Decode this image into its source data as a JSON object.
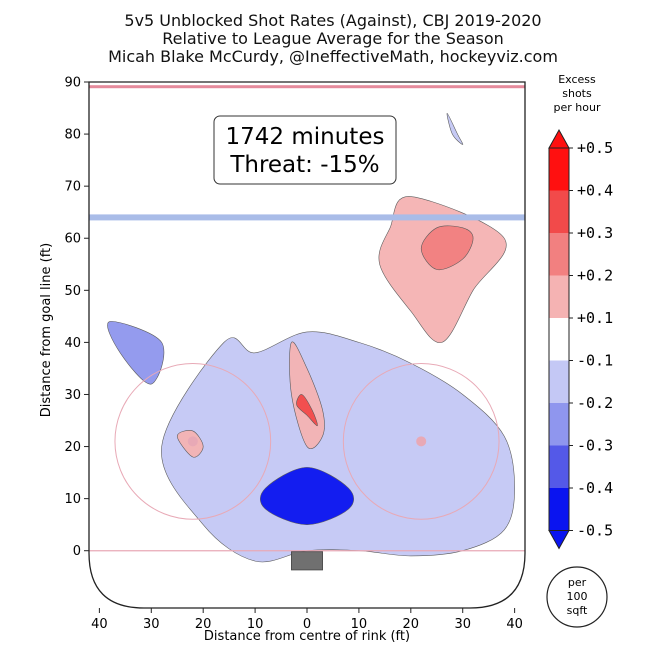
{
  "title_lines": [
    "5v5 Unblocked Shot Rates (Against), CBJ 2019-2020",
    "Relative to League Average for the Season",
    "Micah Blake McCurdy, @IneffectiveMath, hockeyviz.com"
  ],
  "annotation": {
    "line1": "1742 minutes",
    "line2": "Threat: -15%"
  },
  "colors": {
    "pos5": "#ff1010",
    "pos4": "#f24a4a",
    "pos3": "#f28080",
    "pos2": "#f5b3b3",
    "neg2": "#c4c8f5",
    "neg3": "#8f96ee",
    "neg4": "#5459e8",
    "neg5": "#0a14f0",
    "rink_line": "#e8a9b6",
    "blue_line": "#a9bce8",
    "goal": "#707070"
  },
  "chart_data": {
    "type": "heatmap",
    "title": "5v5 Unblocked Shot Rates (Against), CBJ 2019-2020",
    "subtitle": "Relative to League Average for the Season",
    "xlabel": "Distance from centre of rink (ft)",
    "ylabel": "Distance from goal line (ft)",
    "xlim": [
      42,
      -42
    ],
    "ylim": [
      -11,
      90
    ],
    "x_ticks": [
      "40",
      "30",
      "20",
      "10",
      "0",
      "10",
      "20",
      "30",
      "40"
    ],
    "y_ticks": [
      "0",
      "10",
      "20",
      "30",
      "40",
      "50",
      "60",
      "70",
      "80",
      "90"
    ],
    "colorbar": {
      "title": "Excess shots per hour",
      "labels": [
        "+0.5",
        "+0.4",
        "+0.3",
        "+0.2",
        "+0.1",
        "-0.1",
        "-0.2",
        "-0.3",
        "-0.4",
        "-0.5"
      ],
      "unit_note": "per 100 sqft"
    },
    "regions": [
      {
        "level": "neg5",
        "x": [
          0,
          8,
          8,
          0,
          -8,
          -8
        ],
        "y": [
          16,
          12,
          8,
          5,
          8,
          12
        ]
      },
      {
        "level": "neg2",
        "x": [
          16,
          10,
          0,
          -10,
          -20,
          -30,
          -38,
          -40,
          -38,
          -30,
          -20,
          -10,
          0,
          10,
          20,
          28
        ],
        "y": [
          40,
          38,
          42,
          40,
          36,
          30,
          22,
          12,
          4,
          0,
          -1,
          0,
          0,
          -2,
          5,
          20
        ]
      },
      {
        "level": "pos3",
        "x": [
          -32,
          -30,
          -25,
          -22,
          -25,
          -30
        ],
        "y": [
          60,
          56,
          54,
          58,
          62,
          62
        ]
      },
      {
        "level": "pos2",
        "x": [
          3,
          0,
          -3,
          -3,
          0,
          3
        ],
        "y": [
          40,
          35,
          27,
          22,
          20,
          30
        ]
      },
      {
        "level": "pos2",
        "x": [
          -20,
          -16,
          -14,
          -20,
          -26,
          -32,
          -38
        ],
        "y": [
          68,
          62,
          55,
          46,
          40,
          50,
          60
        ]
      },
      {
        "level": "neg3",
        "x": [
          38,
          36,
          30,
          28
        ],
        "y": [
          44,
          38,
          32,
          40
        ]
      },
      {
        "level": "pos4",
        "x": [
          2,
          0,
          -2,
          -1,
          1
        ],
        "y": [
          28,
          26,
          24,
          27,
          30
        ]
      },
      {
        "level": "neg2",
        "x": [
          -27,
          -29,
          -30,
          -28
        ],
        "y": [
          84,
          80,
          78,
          80
        ]
      },
      {
        "level": "pos2",
        "x": [
          25,
          22,
          20,
          22
        ],
        "y": [
          22,
          18,
          20,
          23
        ]
      }
    ]
  }
}
